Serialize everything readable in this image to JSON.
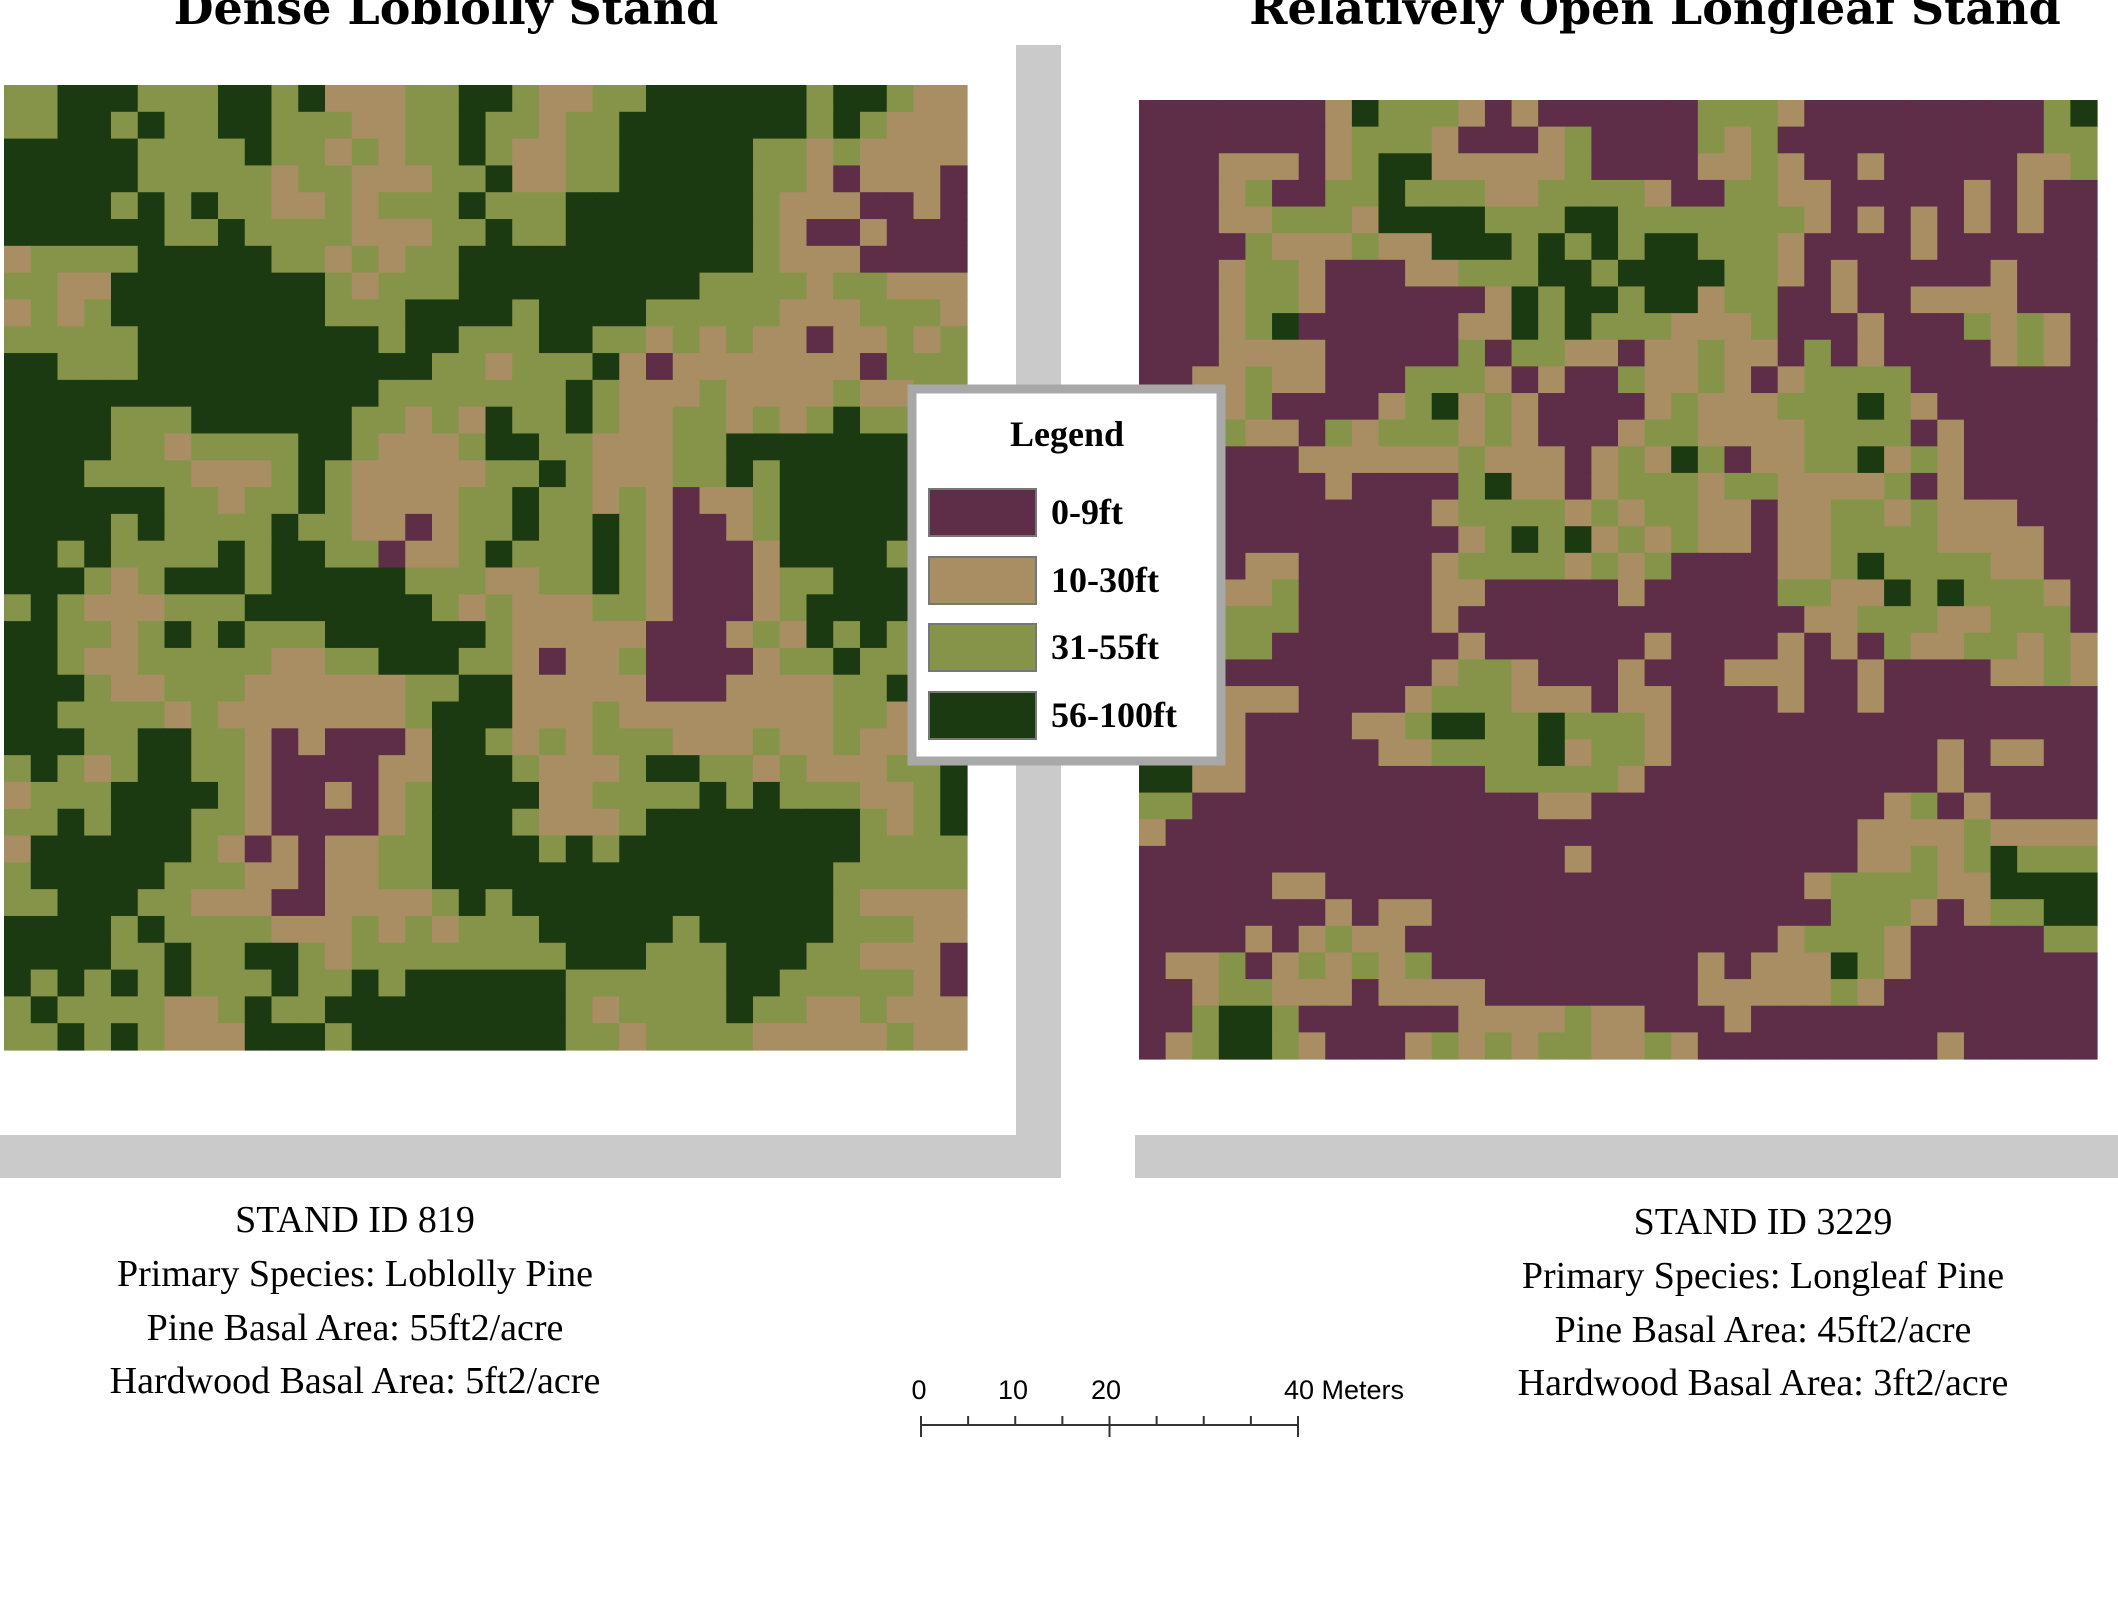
{
  "maps": [
    {
      "title": "Dense Loblolly Stand",
      "info": [
        "STAND ID 819",
        "Primary Species: Loblolly Pine",
        "Pine Basal Area: 55ft2/acre",
        "Hardwood Basal Area: 5ft2/acre"
      ]
    },
    {
      "title": "Relatively Open Longleaf Stand",
      "info": [
        "STAND ID 3229",
        "Primary Species: Longleaf Pine",
        "Pine Basal Area: 45ft2/acre",
        "Hardwood Basal Area: 3ft2/acre"
      ]
    }
  ],
  "legend": {
    "title": "Legend",
    "items": [
      {
        "label": "0-9ft",
        "color": "#5e2d48"
      },
      {
        "label": "10-30ft",
        "color": "#a88e62"
      },
      {
        "label": "31-55ft",
        "color": "#86944a"
      },
      {
        "label": "56-100ft",
        "color": "#1c3a12"
      }
    ]
  },
  "scale_bar": {
    "labels": [
      "0",
      "10",
      "20",
      "40 Meters"
    ]
  }
}
